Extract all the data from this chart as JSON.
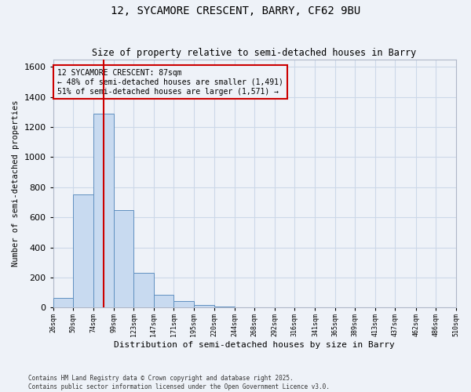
{
  "title": "12, SYCAMORE CRESCENT, BARRY, CF62 9BU",
  "subtitle": "Size of property relative to semi-detached houses in Barry",
  "xlabel": "Distribution of semi-detached houses by size in Barry",
  "ylabel": "Number of semi-detached properties",
  "footnote1": "Contains HM Land Registry data © Crown copyright and database right 2025.",
  "footnote2": "Contains public sector information licensed under the Open Government Licence v3.0.",
  "annotation_title": "12 SYCAMORE CRESCENT: 87sqm",
  "annotation_line2": "← 48% of semi-detached houses are smaller (1,491)",
  "annotation_line3": "51% of semi-detached houses are larger (1,571) →",
  "bar_edges": [
    26,
    50,
    74,
    99,
    123,
    147,
    171,
    195,
    220,
    244,
    268,
    292,
    316,
    341,
    365,
    389,
    413,
    437,
    462,
    486,
    510
  ],
  "bar_values": [
    65,
    750,
    1290,
    650,
    230,
    85,
    45,
    18,
    10,
    0,
    0,
    0,
    0,
    0,
    0,
    0,
    0,
    0,
    0,
    0
  ],
  "bar_color": "#c8daf0",
  "bar_edge_color": "#6090c0",
  "property_line_x": 87,
  "property_line_color": "#cc0000",
  "ylim": [
    0,
    1650
  ],
  "yticks": [
    0,
    200,
    400,
    600,
    800,
    1000,
    1200,
    1400,
    1600
  ],
  "annotation_box_color": "#cc0000",
  "grid_color": "#ccd8e8",
  "bg_color": "#eef2f8"
}
